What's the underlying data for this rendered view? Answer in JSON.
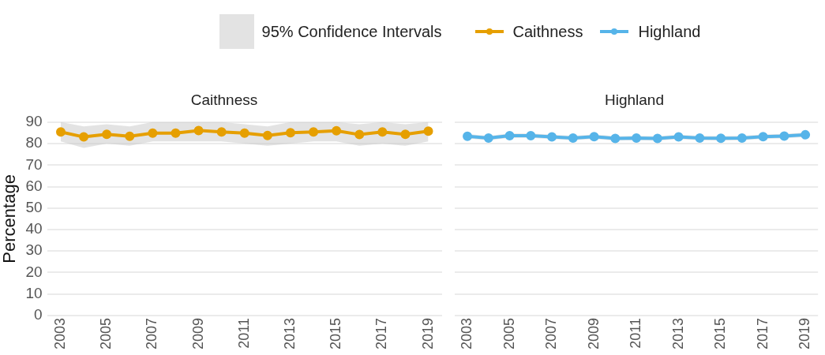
{
  "chart_data": [
    {
      "type": "line",
      "title": "Caithness",
      "ylabel": "Percentage",
      "x": [
        2003,
        2004,
        2005,
        2006,
        2007,
        2008,
        2009,
        2010,
        2011,
        2012,
        2013,
        2014,
        2015,
        2016,
        2017,
        2018,
        2019
      ],
      "series": [
        {
          "name": "Caithness",
          "color": "#e69f00",
          "values": [
            85.4,
            83.1,
            84.3,
            83.4,
            84.9,
            84.9,
            86.1,
            85.4,
            84.9,
            83.8,
            85.1,
            85.4,
            86.0,
            84.2,
            85.4,
            84.3,
            85.8
          ],
          "lower": [
            81,
            78,
            80,
            79,
            81,
            81,
            81,
            81,
            80,
            79,
            80,
            81,
            81,
            79,
            80,
            79,
            81
          ],
          "upper": [
            90,
            88,
            89,
            88,
            90,
            90,
            90,
            90,
            89,
            88,
            90,
            90,
            90,
            89,
            90,
            89,
            90
          ]
        }
      ],
      "xlim": [
        2002.4,
        2019.6
      ],
      "xticks": [
        2003,
        2005,
        2007,
        2009,
        2011,
        2013,
        2015,
        2017,
        2019
      ],
      "ylim": [
        0,
        90
      ],
      "yticks": [
        0,
        10,
        20,
        30,
        40,
        50,
        60,
        70,
        80,
        90
      ],
      "grid": "y",
      "legend": "top",
      "marker": "circle",
      "line_style": "solid",
      "annotations": [
        "95% Confidence Intervals"
      ]
    },
    {
      "type": "line",
      "title": "Highland",
      "x": [
        2003,
        2004,
        2005,
        2006,
        2007,
        2008,
        2009,
        2010,
        2011,
        2012,
        2013,
        2014,
        2015,
        2016,
        2017,
        2018,
        2019
      ],
      "series": [
        {
          "name": "Highland",
          "color": "#56b4e9",
          "values": [
            83.4,
            82.6,
            83.7,
            83.7,
            83.1,
            82.6,
            83.2,
            82.4,
            82.6,
            82.4,
            83.1,
            82.6,
            82.5,
            82.6,
            83.2,
            83.5,
            84.1
          ],
          "lower": [
            82.4,
            81.6,
            82.7,
            82.7,
            82.1,
            81.6,
            82.2,
            81.4,
            81.6,
            81.4,
            82.1,
            81.6,
            81.5,
            81.6,
            82.2,
            82.5,
            83.1
          ],
          "upper": [
            84.4,
            83.6,
            84.7,
            84.7,
            84.1,
            83.6,
            84.2,
            83.4,
            83.6,
            83.4,
            84.1,
            83.6,
            83.5,
            83.6,
            84.2,
            84.5,
            85.1
          ]
        }
      ],
      "xlim": [
        2002.4,
        2019.6
      ],
      "xticks": [
        2003,
        2005,
        2007,
        2009,
        2011,
        2013,
        2015,
        2017,
        2019
      ],
      "ylim": [
        0,
        90
      ],
      "yticks": [
        0,
        10,
        20,
        30,
        40,
        50,
        60,
        70,
        80,
        90
      ],
      "grid": "y",
      "legend": "top",
      "marker": "circle",
      "line_style": "solid",
      "tick_labels": "x"
    }
  ]
}
